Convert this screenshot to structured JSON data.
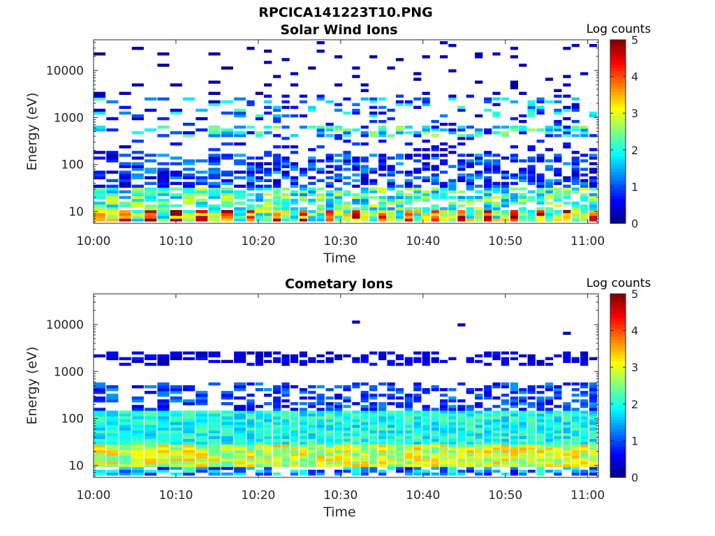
{
  "figure": {
    "title": "RPCICA141223T10.PNG"
  },
  "colors": {
    "axis": "#262626",
    "colormap": "jet"
  },
  "chart_data": [
    {
      "type": "heatmap",
      "title": "Solar Wind Ions",
      "xlabel": "Time",
      "ylabel": "Energy (eV)",
      "xticks": [
        "10:00",
        "10:10",
        "10:20",
        "10:30",
        "10:40",
        "10:50",
        "11:00"
      ],
      "xlim_minutes": [
        0,
        61.3
      ],
      "yscale": "log",
      "yticks": [
        "10",
        "100",
        "1000",
        "10000"
      ],
      "ylim": [
        5.6,
        45000
      ],
      "colorbar": {
        "title": "Log counts",
        "range": [
          0,
          5
        ],
        "ticks": [
          "0",
          "1",
          "2",
          "3",
          "4",
          "5"
        ]
      },
      "profile": "solar",
      "note_values": "Counts per energy/time bin (log10); dense bands near 500 eV, 100 eV, 20 eV"
    },
    {
      "type": "heatmap",
      "title": "Cometary Ions",
      "xlabel": "Time",
      "ylabel": "Energy (eV)",
      "xticks": [
        "10:00",
        "10:10",
        "10:20",
        "10:30",
        "10:40",
        "10:50",
        "11:00"
      ],
      "xlim_minutes": [
        0,
        61.3
      ],
      "yscale": "log",
      "yticks": [
        "10",
        "100",
        "1000",
        "10000"
      ],
      "ylim": [
        5.6,
        45000
      ],
      "colorbar": {
        "title": "Log counts",
        "range": [
          0,
          5
        ],
        "ticks": [
          "0",
          "1",
          "2",
          "3",
          "4",
          "5"
        ]
      },
      "profile": "cometary",
      "note_values": "Peak log counts ~3 near 20 eV; broad band 40-150 eV"
    }
  ]
}
